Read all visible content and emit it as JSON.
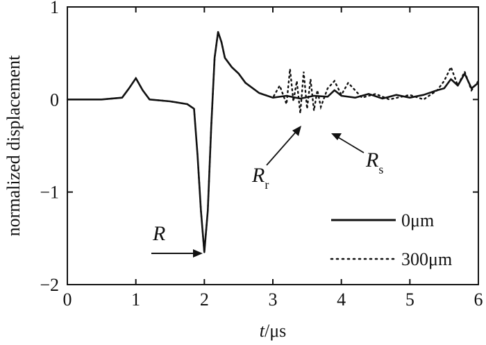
{
  "chart_data": {
    "type": "line",
    "xlabel_italic": "t",
    "xlabel_rest": "/μs",
    "ylabel": "normalized displacement",
    "xlim": [
      0,
      6
    ],
    "ylim": [
      -2,
      1
    ],
    "x_ticks": [
      "0",
      "1",
      "2",
      "3",
      "4",
      "5",
      "6"
    ],
    "y_ticks": [
      "1",
      "0",
      "−1",
      "−2"
    ],
    "grid": false,
    "legend_position": "bottom-right",
    "series": [
      {
        "name": "0μm",
        "style": "solid",
        "x": [
          0,
          0.5,
          0.8,
          0.9,
          1.0,
          1.1,
          1.2,
          1.5,
          1.75,
          1.85,
          1.9,
          1.95,
          2.0,
          2.05,
          2.1,
          2.15,
          2.2,
          2.25,
          2.3,
          2.4,
          2.5,
          2.6,
          2.8,
          3.0,
          3.2,
          3.4,
          3.6,
          3.8,
          3.9,
          4.0,
          4.2,
          4.4,
          4.6,
          4.8,
          5.0,
          5.2,
          5.4,
          5.5,
          5.6,
          5.7,
          5.8,
          5.9,
          6.0
        ],
        "y": [
          0,
          0,
          0.02,
          0.12,
          0.23,
          0.1,
          0.0,
          -0.02,
          -0.05,
          -0.1,
          -0.6,
          -1.2,
          -1.65,
          -1.2,
          -0.3,
          0.45,
          0.73,
          0.62,
          0.45,
          0.35,
          0.28,
          0.18,
          0.07,
          0.02,
          0.04,
          0.01,
          0.04,
          0.03,
          0.1,
          0.04,
          0.02,
          0.06,
          0.01,
          0.05,
          0.02,
          0.05,
          0.1,
          0.12,
          0.22,
          0.15,
          0.28,
          0.12,
          0.18
        ]
      },
      {
        "name": "300μm",
        "style": "dotted",
        "x": [
          0,
          0.5,
          0.8,
          0.9,
          1.0,
          1.1,
          1.2,
          1.5,
          1.75,
          1.85,
          1.9,
          1.95,
          2.0,
          2.05,
          2.1,
          2.15,
          2.2,
          2.25,
          2.3,
          2.4,
          2.5,
          2.6,
          2.8,
          3.0,
          3.1,
          3.2,
          3.25,
          3.3,
          3.35,
          3.4,
          3.45,
          3.5,
          3.55,
          3.6,
          3.65,
          3.7,
          3.8,
          3.9,
          4.0,
          4.1,
          4.3,
          4.5,
          4.7,
          5.0,
          5.2,
          5.4,
          5.5,
          5.6,
          5.7,
          5.8,
          5.9,
          6.0
        ],
        "y": [
          0,
          0,
          0.02,
          0.12,
          0.23,
          0.1,
          0.0,
          -0.02,
          -0.05,
          -0.1,
          -0.6,
          -1.2,
          -1.65,
          -1.2,
          -0.3,
          0.45,
          0.73,
          0.62,
          0.45,
          0.35,
          0.28,
          0.18,
          0.07,
          0.02,
          0.15,
          -0.05,
          0.33,
          -0.02,
          0.2,
          -0.15,
          0.3,
          -0.1,
          0.22,
          -0.12,
          0.1,
          -0.08,
          0.12,
          0.2,
          0.05,
          0.18,
          0.02,
          0.06,
          0.0,
          0.05,
          0.0,
          0.1,
          0.2,
          0.35,
          0.15,
          0.3,
          0.1,
          0.2
        ]
      }
    ],
    "annotations": {
      "R": "R",
      "Rr_main": "R",
      "Rr_sub": "r",
      "Rs_main": "R",
      "Rs_sub": "s"
    }
  }
}
